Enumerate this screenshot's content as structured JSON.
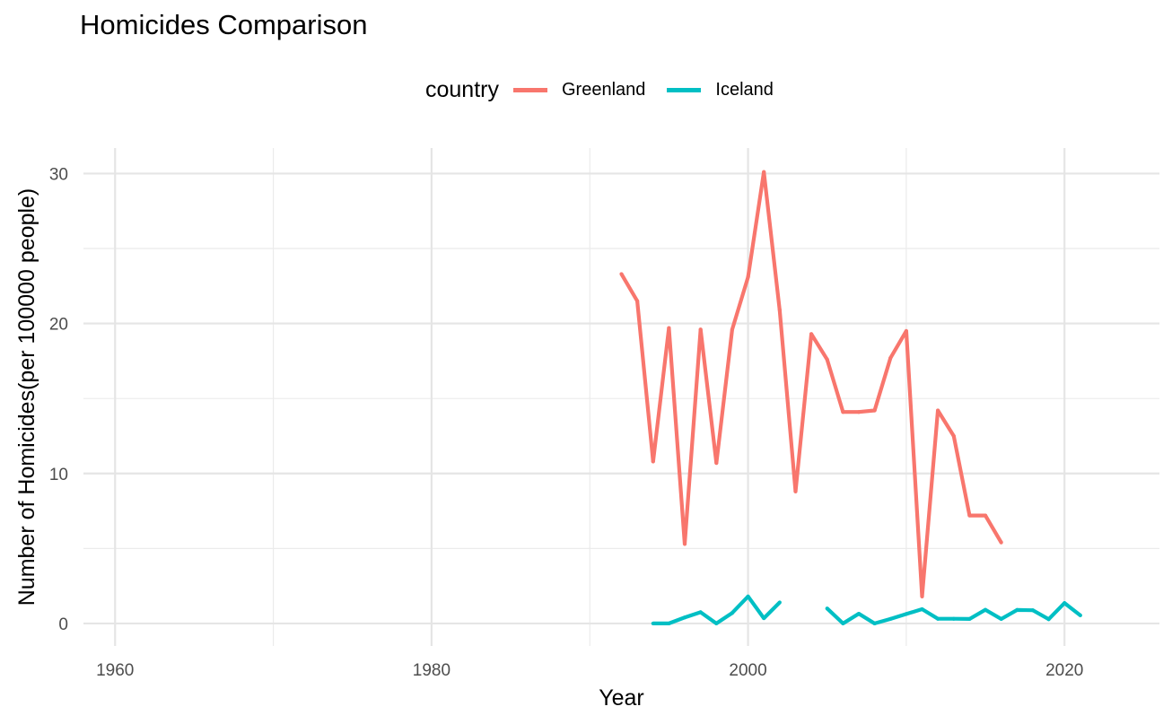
{
  "chart_data": {
    "type": "line",
    "title": "Homicides Comparison",
    "xlabel": "Year",
    "ylabel": "Number of Homicides(per 100000 people)",
    "xlim": [
      1958,
      2026
    ],
    "ylim": [
      -1.5,
      31.7
    ],
    "x_ticks": [
      1960,
      1980,
      2000,
      2020
    ],
    "y_ticks": [
      0,
      10,
      20,
      30
    ],
    "x_tick_labels": [
      "1960",
      "1980",
      "2000",
      "2020"
    ],
    "y_tick_labels": [
      "0",
      "10",
      "20",
      "30"
    ],
    "grid": true,
    "legend": {
      "title": "country",
      "position": "top"
    },
    "series": [
      {
        "name": "Greenland",
        "color": "#F8766D",
        "points": [
          [
            1992,
            23.3
          ],
          [
            1993,
            21.5
          ],
          [
            1994,
            10.8
          ],
          [
            1995,
            19.7
          ],
          [
            1996,
            5.3
          ],
          [
            1997,
            19.6
          ],
          [
            1998,
            10.7
          ],
          [
            1999,
            19.6
          ],
          [
            2000,
            23.1
          ],
          [
            2001,
            30.1
          ],
          [
            2002,
            20.9
          ],
          [
            2003,
            8.8
          ],
          [
            2004,
            19.3
          ],
          [
            2005,
            17.6
          ],
          [
            2006,
            14.1
          ],
          [
            2007,
            14.1
          ],
          [
            2008,
            14.2
          ],
          [
            2009,
            17.7
          ],
          [
            2010,
            19.5
          ],
          [
            2011,
            1.8
          ],
          [
            2012,
            14.2
          ],
          [
            2013,
            12.5
          ],
          [
            2014,
            7.2
          ],
          [
            2015,
            7.2
          ],
          [
            2016,
            5.4
          ]
        ]
      },
      {
        "name": "Iceland",
        "color": "#00BFC4",
        "points": [
          [
            1994,
            0.0
          ],
          [
            1995,
            0.0
          ],
          [
            1996,
            0.4
          ],
          [
            1997,
            0.75
          ],
          [
            1998,
            0.0
          ],
          [
            1999,
            0.7
          ],
          [
            2000,
            1.8
          ],
          [
            2001,
            0.35
          ],
          [
            2002,
            1.4
          ],
          null,
          [
            2005,
            1.0
          ],
          [
            2006,
            0.0
          ],
          [
            2007,
            0.65
          ],
          [
            2008,
            0.0
          ],
          [
            2009,
            0.3
          ],
          [
            2010,
            0.63
          ],
          [
            2011,
            0.95
          ],
          [
            2012,
            0.31
          ],
          [
            2013,
            0.31
          ],
          [
            2014,
            0.3
          ],
          [
            2015,
            0.91
          ],
          [
            2016,
            0.3
          ],
          [
            2017,
            0.9
          ],
          [
            2018,
            0.88
          ],
          [
            2019,
            0.28
          ],
          [
            2020,
            1.36
          ],
          [
            2021,
            0.54
          ]
        ]
      }
    ]
  }
}
